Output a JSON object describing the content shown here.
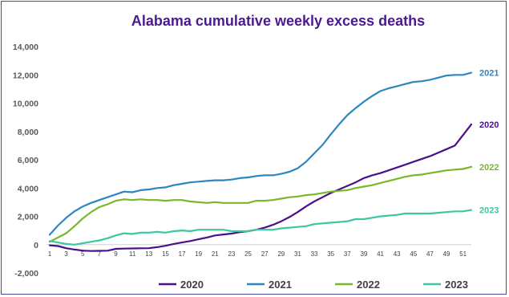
{
  "chart_data": {
    "type": "line",
    "title": "Alabama cumulative weekly excess deaths",
    "xlabel": "",
    "ylabel": "",
    "ylim": [
      -2000,
      14000
    ],
    "ytick_labels": [
      "-2,000",
      "0",
      "2,000",
      "4,000",
      "6,000",
      "8,000",
      "10,000",
      "12,000",
      "14,000"
    ],
    "xlim": [
      1,
      52
    ],
    "xtick_labels": [
      "1",
      "3",
      "5",
      "7",
      "9",
      "11",
      "13",
      "15",
      "17",
      "19",
      "21",
      "23",
      "25",
      "27",
      "29",
      "31",
      "33",
      "35",
      "37",
      "39",
      "41",
      "43",
      "45",
      "47",
      "49",
      "51"
    ],
    "grid": false,
    "legend_position": "bottom",
    "series": [
      {
        "name": "2020",
        "color": "#4b0f8c",
        "end_label": "2020",
        "x": [
          1,
          2,
          3,
          4,
          5,
          6,
          7,
          8,
          9,
          10,
          11,
          12,
          13,
          14,
          15,
          16,
          17,
          18,
          19,
          20,
          21,
          22,
          23,
          24,
          25,
          26,
          27,
          28,
          29,
          30,
          31,
          32,
          33,
          34,
          35,
          36,
          37,
          38,
          39,
          40,
          41,
          42,
          43,
          44,
          45,
          46,
          47,
          48,
          49,
          50,
          51,
          52
        ],
        "values": [
          -50,
          -100,
          -250,
          -350,
          -420,
          -450,
          -440,
          -430,
          -300,
          -280,
          -270,
          -260,
          -250,
          -180,
          -80,
          50,
          150,
          250,
          380,
          500,
          650,
          720,
          780,
          880,
          950,
          1050,
          1200,
          1400,
          1650,
          1950,
          2300,
          2700,
          3050,
          3350,
          3650,
          3900,
          4150,
          4400,
          4700,
          4900,
          5050,
          5250,
          5450,
          5650,
          5850,
          6050,
          6250,
          6500,
          6750,
          7000,
          7750,
          8500
        ]
      },
      {
        "name": "2021",
        "color": "#2e86c1",
        "end_label": "2021",
        "x": [
          1,
          2,
          3,
          4,
          5,
          6,
          7,
          8,
          9,
          10,
          11,
          12,
          13,
          14,
          15,
          16,
          17,
          18,
          19,
          20,
          21,
          22,
          23,
          24,
          25,
          26,
          27,
          28,
          29,
          30,
          31,
          32,
          33,
          34,
          35,
          36,
          37,
          38,
          39,
          40,
          41,
          42,
          43,
          44,
          45,
          46,
          47,
          48,
          49,
          50,
          51,
          52
        ],
        "values": [
          700,
          1350,
          1900,
          2350,
          2700,
          2950,
          3150,
          3350,
          3550,
          3750,
          3700,
          3850,
          3900,
          4000,
          4050,
          4200,
          4300,
          4400,
          4450,
          4500,
          4550,
          4550,
          4600,
          4700,
          4750,
          4850,
          4900,
          4900,
          5000,
          5150,
          5400,
          5850,
          6450,
          7050,
          7800,
          8500,
          9150,
          9650,
          10100,
          10500,
          10850,
          11050,
          11200,
          11350,
          11500,
          11550,
          11650,
          11800,
          11950,
          12000,
          12000,
          12150
        ]
      },
      {
        "name": "2022",
        "color": "#7ab828",
        "end_label": "2022",
        "x": [
          1,
          2,
          3,
          4,
          5,
          6,
          7,
          8,
          9,
          10,
          11,
          12,
          13,
          14,
          15,
          16,
          17,
          18,
          19,
          20,
          21,
          22,
          23,
          24,
          25,
          26,
          27,
          28,
          29,
          30,
          31,
          32,
          33,
          34,
          35,
          36,
          37,
          38,
          39,
          40,
          41,
          42,
          43,
          44,
          45,
          46,
          47,
          48,
          49,
          50,
          51,
          52
        ],
        "values": [
          200,
          500,
          800,
          1300,
          1850,
          2300,
          2650,
          2850,
          3100,
          3200,
          3150,
          3200,
          3150,
          3150,
          3100,
          3150,
          3150,
          3050,
          3000,
          2950,
          3000,
          2950,
          2950,
          2950,
          2950,
          3100,
          3100,
          3150,
          3250,
          3350,
          3400,
          3500,
          3550,
          3650,
          3750,
          3800,
          3850,
          4000,
          4100,
          4200,
          4350,
          4500,
          4650,
          4800,
          4900,
          4950,
          5050,
          5150,
          5250,
          5300,
          5350,
          5500
        ]
      },
      {
        "name": "2023",
        "color": "#3cc6a3",
        "end_label": "2023",
        "x": [
          1,
          2,
          3,
          4,
          5,
          6,
          7,
          8,
          9,
          10,
          11,
          12,
          13,
          14,
          15,
          16,
          17,
          18,
          19,
          20,
          21,
          22,
          23,
          24,
          25,
          26,
          27,
          28,
          29,
          30,
          31,
          32,
          33,
          34,
          35,
          36,
          37,
          38,
          39,
          40,
          41,
          42,
          43,
          44,
          45,
          46,
          47,
          48,
          49,
          50,
          51,
          52
        ],
        "values": [
          250,
          150,
          50,
          0,
          100,
          200,
          300,
          450,
          650,
          800,
          750,
          850,
          850,
          900,
          850,
          950,
          1000,
          950,
          1050,
          1050,
          1050,
          1050,
          950,
          950,
          950,
          1050,
          1050,
          1050,
          1150,
          1200,
          1250,
          1300,
          1450,
          1500,
          1550,
          1600,
          1650,
          1800,
          1800,
          1900,
          2000,
          2050,
          2100,
          2200,
          2200,
          2200,
          2200,
          2250,
          2300,
          2350,
          2350,
          2450
        ]
      }
    ]
  }
}
